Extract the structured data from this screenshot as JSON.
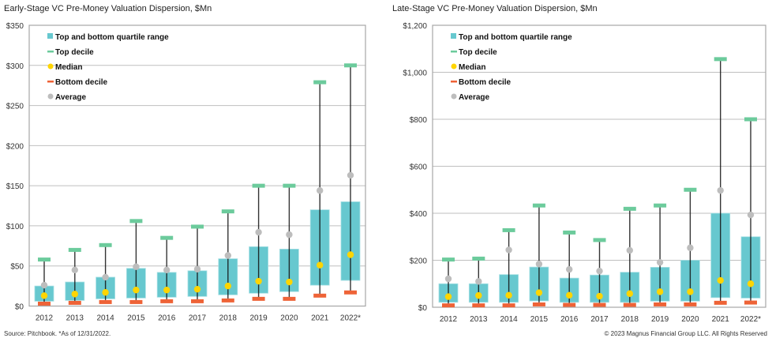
{
  "colors": {
    "quartile_box": "#67C8CF",
    "top_decile": "#6CCB9C",
    "median": "#FFD500",
    "bottom_decile": "#EE6337",
    "average": "#BDBDBD",
    "whisker": "#111111",
    "grid": "#BFBFBF"
  },
  "legend": [
    {
      "key": "quartile",
      "label": "Top and bottom quartile range"
    },
    {
      "key": "top_decile",
      "label": "Top decile"
    },
    {
      "key": "median",
      "label": "Median"
    },
    {
      "key": "bottom_decile",
      "label": "Bottom decile"
    },
    {
      "key": "average",
      "label": "Average"
    }
  ],
  "footer": {
    "source": "Source: Pitchbook. *As of 12/31/2022.",
    "copyright": "© 2023 Magnus Financial Group LLC. All Rights Reserved"
  },
  "chart_data": [
    {
      "type": "box",
      "title": "Early-Stage VC Pre-Money Valuation Dispersion, $Mn",
      "xlabel": "",
      "ylabel": "",
      "ylim": [
        0,
        350
      ],
      "yticks": [
        0,
        50,
        100,
        150,
        200,
        250,
        300,
        350
      ],
      "ytick_labels": [
        "$0",
        "$50",
        "$100",
        "$150",
        "$200",
        "$250",
        "$300",
        "$350"
      ],
      "grid": true,
      "legend_position": "top-left",
      "categories": [
        "2012",
        "2013",
        "2014",
        "2015",
        "2016",
        "2017",
        "2018",
        "2019",
        "2020",
        "2021",
        "2022*"
      ],
      "series": [
        {
          "name": "Top decile",
          "values": [
            58,
            70,
            76,
            106,
            85,
            99,
            118,
            150,
            150,
            279,
            300
          ]
        },
        {
          "name": "Top quartile",
          "values": [
            25,
            30,
            36,
            47,
            42,
            44,
            59,
            74,
            71,
            120,
            130
          ]
        },
        {
          "name": "Average",
          "values": [
            26,
            45,
            36,
            49,
            45,
            46,
            63,
            92,
            89,
            144,
            163
          ]
        },
        {
          "name": "Median",
          "values": [
            13,
            15,
            17,
            20,
            20,
            21,
            25,
            31,
            30,
            51,
            64
          ]
        },
        {
          "name": "Bottom quartile",
          "values": [
            6,
            7,
            9,
            10,
            11,
            12,
            14,
            16,
            18,
            26,
            32
          ]
        },
        {
          "name": "Bottom decile",
          "values": [
            3,
            4,
            5,
            5,
            6,
            6,
            7,
            9,
            9,
            13,
            17
          ]
        }
      ]
    },
    {
      "type": "box",
      "title": "Late-Stage VC Pre-Money Valuation Dispersion, $Mn",
      "xlabel": "",
      "ylabel": "",
      "ylim": [
        0,
        1200
      ],
      "yticks": [
        0,
        200,
        400,
        600,
        800,
        1000,
        1200
      ],
      "ytick_labels": [
        "$0",
        "$200",
        "$400",
        "$600",
        "$800",
        "$1,000",
        "$1,200"
      ],
      "grid": true,
      "legend_position": "top-left",
      "categories": [
        "2012",
        "2013",
        "2014",
        "2015",
        "2016",
        "2017",
        "2018",
        "2019",
        "2020",
        "2021",
        "2022*"
      ],
      "series": [
        {
          "name": "Top decile",
          "values": [
            203,
            207,
            328,
            433,
            318,
            286,
            419,
            433,
            500,
            1056,
            800
          ]
        },
        {
          "name": "Top quartile",
          "values": [
            100,
            100,
            139,
            171,
            124,
            137,
            149,
            170,
            200,
            400,
            300
          ]
        },
        {
          "name": "Average",
          "values": [
            121,
            110,
            244,
            184,
            161,
            154,
            242,
            191,
            253,
            497,
            393
          ]
        },
        {
          "name": "Median",
          "values": [
            45,
            50,
            51,
            62,
            51,
            47,
            58,
            66,
            66,
            114,
            100
          ]
        },
        {
          "name": "Bottom quartile",
          "values": [
            21,
            21,
            21,
            27,
            21,
            21,
            21,
            26,
            26,
            41,
            39
          ]
        },
        {
          "name": "Bottom decile",
          "values": [
            8,
            8,
            8,
            12,
            10,
            10,
            10,
            12,
            12,
            19,
            20
          ]
        }
      ]
    }
  ]
}
